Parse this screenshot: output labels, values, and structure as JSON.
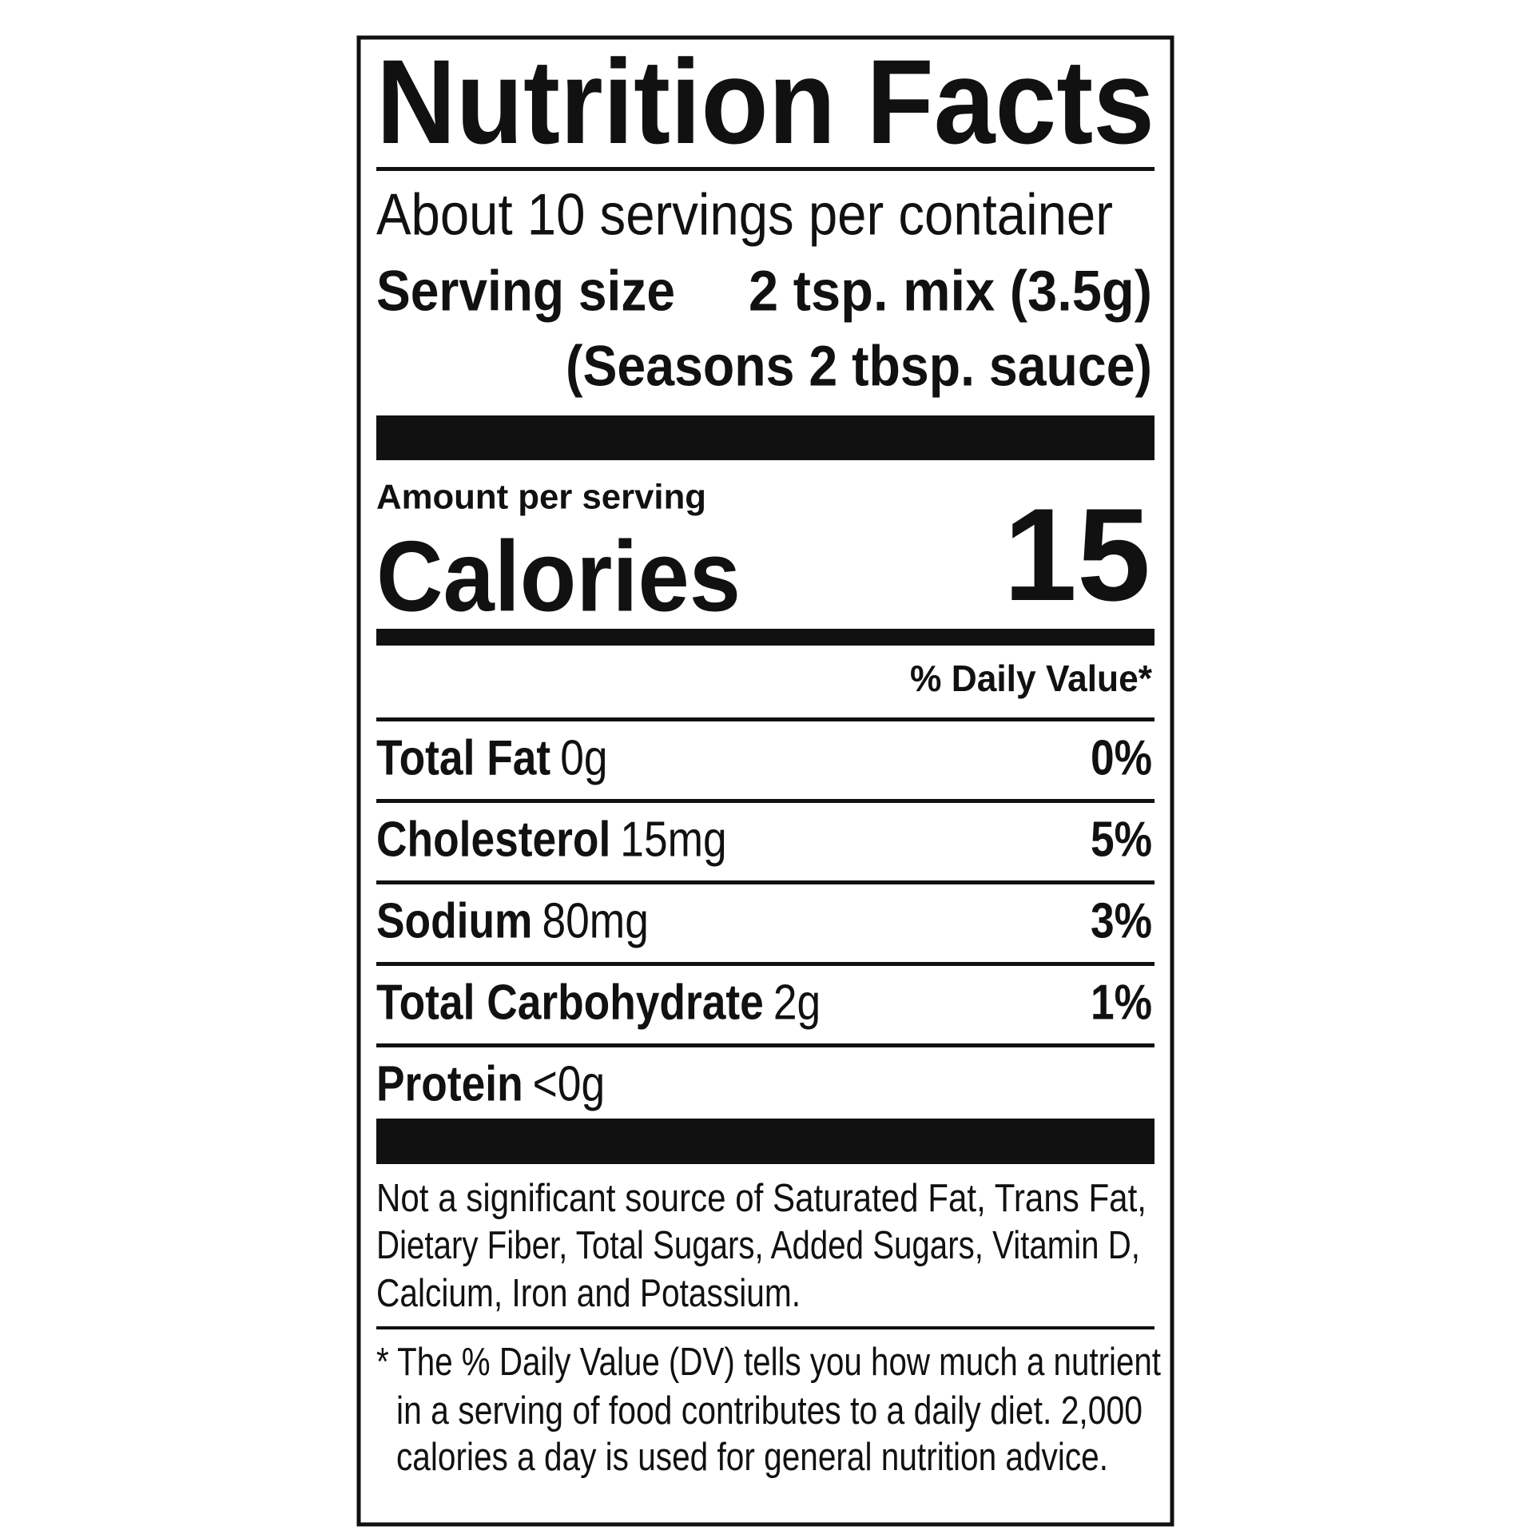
{
  "title": "Nutrition Facts",
  "servings": "About 10 servings per container",
  "serving_size": {
    "label": "Serving size",
    "value": "2 tsp. mix (3.5g)",
    "note": "(Seasons 2 tbsp. sauce)"
  },
  "amount_label": "Amount per serving",
  "calories": {
    "label": "Calories",
    "value": "15"
  },
  "daily_value_header": "% Daily Value*",
  "nutrients": [
    {
      "name": "Total Fat",
      "amount": "0g",
      "dv": "0%"
    },
    {
      "name": "Cholesterol",
      "amount": "15mg",
      "dv": "5%"
    },
    {
      "name": "Sodium",
      "amount": "80mg",
      "dv": "3%"
    },
    {
      "name": "Total Carbohydrate",
      "amount": "2g",
      "dv": "1%"
    },
    {
      "name": "Protein",
      "amount": "<0g"
    }
  ],
  "not_significant": [
    "Not a significant source of Saturated Fat, Trans Fat,",
    "Dietary Fiber, Total Sugars, Added Sugars, Vitamin D,",
    "Calcium, Iron and Potassium."
  ],
  "footnote": [
    "* The % Daily Value (DV) tells you how much a nutrient",
    "in a serving of food contributes to a daily diet. 2,000",
    "calories a day is used for general nutrition advice."
  ]
}
